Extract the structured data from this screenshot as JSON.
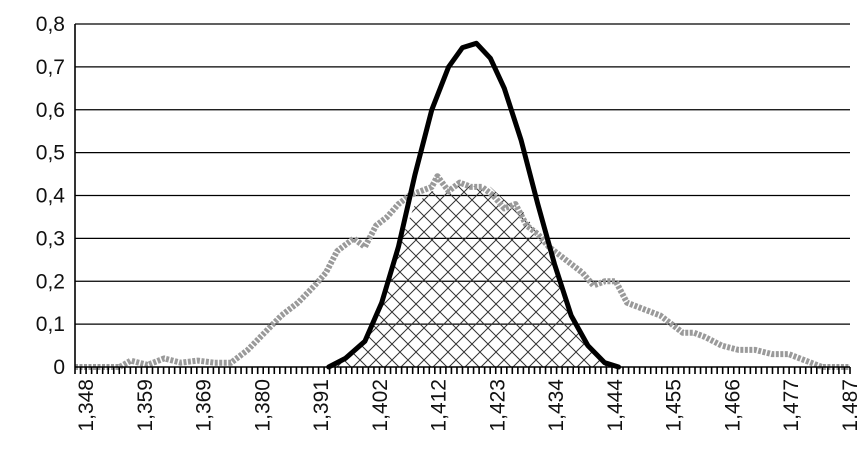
{
  "chart_data": {
    "type": "line",
    "title": "",
    "xlabel": "",
    "ylabel": "",
    "x_tick_labels": [
      "1,348",
      "1,359",
      "1,369",
      "1,380",
      "1,391",
      "1,402",
      "1,412",
      "1,423",
      "1,434",
      "1,444",
      "1,455",
      "1,466",
      "1,477",
      "1,487"
    ],
    "y_tick_labels": [
      "0",
      "0,1",
      "0,2",
      "0,3",
      "0,4",
      "0,5",
      "0,6",
      "0,7",
      "0,8"
    ],
    "xlim": [
      1.348,
      1.487
    ],
    "ylim": [
      0,
      0.8
    ],
    "grid": "horizontal",
    "legend": "none",
    "series": [
      {
        "style": "thick black smooth line",
        "color": "#000000",
        "x": [
          1.3935,
          1.3965,
          1.4,
          1.403,
          1.406,
          1.409,
          1.412,
          1.415,
          1.4175,
          1.42,
          1.4225,
          1.425,
          1.428,
          1.431,
          1.434,
          1.437,
          1.44,
          1.443,
          1.4455
        ],
        "y": [
          0.0,
          0.02,
          0.06,
          0.15,
          0.28,
          0.45,
          0.6,
          0.7,
          0.745,
          0.755,
          0.72,
          0.65,
          0.53,
          0.38,
          0.24,
          0.12,
          0.05,
          0.01,
          0.0
        ]
      },
      {
        "style": "gray noisy histogram line",
        "color": "#9a9a9a",
        "x": [
          1.348,
          1.356,
          1.358,
          1.361,
          1.364,
          1.367,
          1.37,
          1.373,
          1.376,
          1.379,
          1.382,
          1.385,
          1.388,
          1.391,
          1.393,
          1.395,
          1.398,
          1.4,
          1.402,
          1.404,
          1.406,
          1.408,
          1.41,
          1.412,
          1.413,
          1.415,
          1.417,
          1.419,
          1.421,
          1.423,
          1.425,
          1.427,
          1.429,
          1.431,
          1.433,
          1.435,
          1.437,
          1.439,
          1.441,
          1.443,
          1.445,
          1.447,
          1.449,
          1.451,
          1.453,
          1.455,
          1.457,
          1.459,
          1.461,
          1.464,
          1.467,
          1.47,
          1.473,
          1.476,
          1.478,
          1.48,
          1.482,
          1.487
        ],
        "y": [
          0.0,
          0.0,
          0.015,
          0.005,
          0.02,
          0.01,
          0.015,
          0.01,
          0.01,
          0.04,
          0.08,
          0.12,
          0.15,
          0.19,
          0.22,
          0.27,
          0.3,
          0.28,
          0.33,
          0.35,
          0.38,
          0.4,
          0.41,
          0.42,
          0.445,
          0.41,
          0.43,
          0.42,
          0.42,
          0.4,
          0.37,
          0.38,
          0.33,
          0.31,
          0.28,
          0.26,
          0.24,
          0.22,
          0.19,
          0.2,
          0.2,
          0.15,
          0.14,
          0.13,
          0.12,
          0.1,
          0.08,
          0.08,
          0.07,
          0.05,
          0.04,
          0.04,
          0.03,
          0.03,
          0.02,
          0.01,
          0.0,
          0.0
        ]
      },
      {
        "style": "crosshatched overlap area",
        "color": "#444444",
        "x": [
          1.3935,
          1.3965,
          1.4,
          1.403,
          1.406,
          1.409,
          1.412,
          1.415,
          1.4175,
          1.42,
          1.4225,
          1.425,
          1.428,
          1.431,
          1.434,
          1.437,
          1.44,
          1.443,
          1.4455
        ],
        "y": [
          0.0,
          0.02,
          0.06,
          0.15,
          0.28,
          0.38,
          0.41,
          0.41,
          0.43,
          0.42,
          0.42,
          0.39,
          0.37,
          0.31,
          0.24,
          0.12,
          0.05,
          0.01,
          0.0
        ]
      }
    ]
  }
}
